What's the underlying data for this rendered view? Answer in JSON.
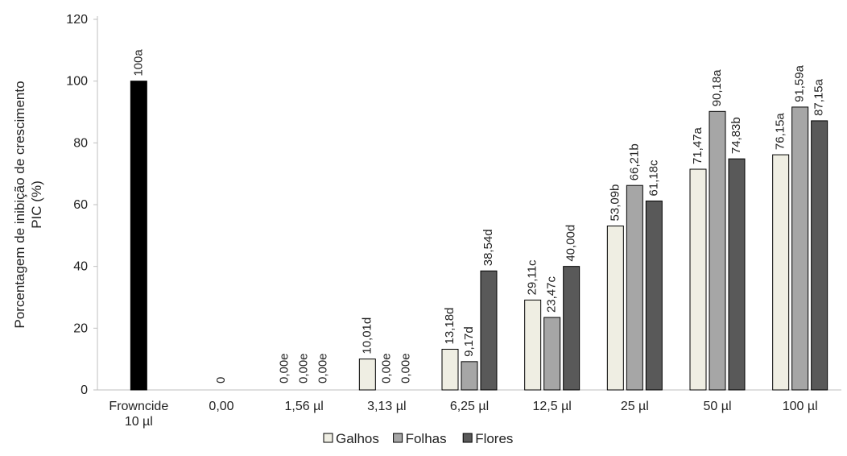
{
  "chart_data": {
    "type": "bar",
    "ylabel": [
      "Porcentagem de inibição de crescimento",
      "PIC (%)"
    ],
    "xlabel": "",
    "ylim": [
      0,
      120
    ],
    "yticks": [
      "0",
      "20",
      "40",
      "60",
      "80",
      "100",
      "120"
    ],
    "grid": false,
    "legend_position": "bottom",
    "categories": [
      [
        "Frowncide",
        "10 µl"
      ],
      [
        "0,00"
      ],
      [
        "1,56 µl"
      ],
      [
        "3,13 µl"
      ],
      [
        "6,25 µl"
      ],
      [
        "12,5 µl"
      ],
      [
        "25 µl"
      ],
      [
        "50 µl"
      ],
      [
        "100 µl"
      ]
    ],
    "control": {
      "category_index": 0,
      "value": 100,
      "label": "100a",
      "color": "#000000"
    },
    "zero_label": {
      "category_index": 1,
      "label": "0"
    },
    "series": [
      {
        "name": "Galhos",
        "color": "#efeee3",
        "values": [
          null,
          null,
          0.0,
          10.01,
          13.18,
          29.11,
          53.09,
          71.47,
          76.15
        ],
        "labels": [
          null,
          null,
          "0,00e",
          "10,01d",
          "13,18d",
          "29,11c",
          "53,09b",
          "71,47a",
          "76,15a"
        ]
      },
      {
        "name": "Folhas",
        "color": "#a6a6a6",
        "values": [
          null,
          null,
          0.0,
          0.0,
          9.17,
          23.47,
          66.21,
          90.18,
          91.59
        ],
        "labels": [
          null,
          null,
          "0,00e",
          "0,00e",
          "9,17d",
          "23,47c",
          "66,21b",
          "90,18a",
          "91,59a"
        ]
      },
      {
        "name": "Flores",
        "color": "#595959",
        "values": [
          null,
          null,
          0.0,
          0.0,
          38.54,
          40.0,
          61.18,
          74.83,
          87.15
        ],
        "labels": [
          null,
          null,
          "0,00e",
          "0,00e",
          "38,54d",
          "40,00d",
          "61,18c",
          "74,83b",
          "87,15a"
        ]
      }
    ]
  }
}
